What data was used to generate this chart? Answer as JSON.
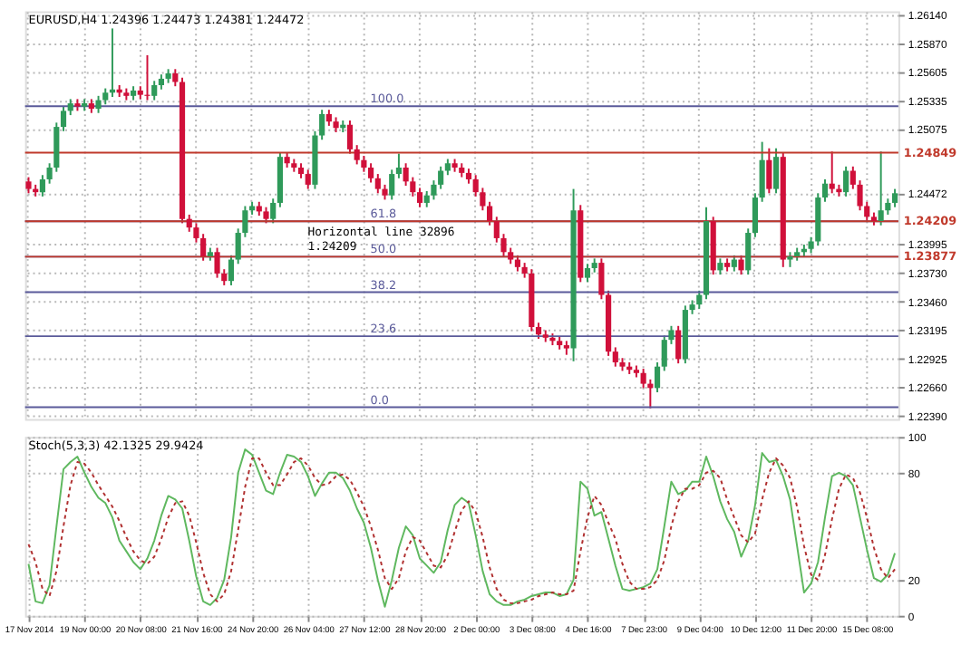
{
  "chart_data": [
    {
      "type": "candlestick",
      "title": "EURUSD,H4  1.24396 1.24473 1.24381 1.24472",
      "categories": [
        null,
        null,
        null,
        null,
        null,
        null,
        null,
        null,
        null,
        null,
        null,
        null,
        null,
        null,
        null,
        null,
        null,
        null,
        null,
        null,
        null,
        null,
        null,
        null,
        null,
        null,
        null,
        null,
        null,
        null,
        null,
        null,
        null,
        null,
        null,
        null,
        null,
        null,
        null,
        null,
        null,
        null,
        null,
        null,
        null,
        null,
        null,
        null,
        null,
        null,
        null,
        null,
        null,
        null,
        null,
        null,
        null,
        null,
        null,
        null,
        null,
        null,
        null,
        null,
        null,
        null,
        null,
        null,
        null,
        null,
        null,
        null,
        null,
        null,
        null,
        null,
        null,
        null,
        null,
        null,
        null,
        null,
        null,
        null,
        null,
        null,
        null,
        null,
        null,
        null,
        null,
        null,
        null,
        null,
        null,
        null,
        null,
        null,
        null,
        null,
        null,
        null,
        null,
        null,
        null,
        null,
        null,
        null,
        null,
        null,
        null,
        null,
        null,
        null,
        null,
        null,
        null,
        null,
        null,
        null,
        null,
        null,
        null,
        null,
        null
      ],
      "ohlc": [
        [
          1.2458,
          1.2462,
          1.2447,
          1.2451
        ],
        [
          1.2451,
          1.2455,
          1.2444,
          1.2448
        ],
        [
          1.2448,
          1.2464,
          1.2444,
          1.246
        ],
        [
          1.246,
          1.2475,
          1.2456,
          1.2471
        ],
        [
          1.2471,
          1.2513,
          1.2467,
          1.2509
        ],
        [
          1.2509,
          1.2528,
          1.2505,
          1.2524
        ],
        [
          1.2524,
          1.2535,
          1.252,
          1.2531
        ],
        [
          1.2531,
          1.2535,
          1.2524,
          1.2528
        ],
        [
          1.2528,
          1.2535,
          1.2524,
          1.2531
        ],
        [
          1.2531,
          1.2535,
          1.2522,
          1.2526
        ],
        [
          1.2526,
          1.2538,
          1.2522,
          1.2534
        ],
        [
          1.2534,
          1.2545,
          1.253,
          1.2541
        ],
        [
          1.2541,
          1.2601,
          1.2537,
          1.2544
        ],
        [
          1.2544,
          1.2548,
          1.2537,
          1.2541
        ],
        [
          1.2541,
          1.2545,
          1.2534,
          1.2538
        ],
        [
          1.2538,
          1.2547,
          1.2534,
          1.2543
        ],
        [
          1.2543,
          1.2547,
          1.2535,
          1.2539
        ],
        [
          1.2539,
          1.2576,
          1.2534,
          1.2538
        ],
        [
          1.2538,
          1.2552,
          1.2534,
          1.2548
        ],
        [
          1.2548,
          1.2558,
          1.2544,
          1.2554
        ],
        [
          1.2554,
          1.2563,
          1.255,
          1.2559
        ],
        [
          1.2559,
          1.2563,
          1.2547,
          1.2551
        ],
        [
          1.2551,
          1.2555,
          1.2419,
          1.2423
        ],
        [
          1.2423,
          1.2427,
          1.2411,
          1.2415
        ],
        [
          1.2415,
          1.2419,
          1.2401,
          1.2405
        ],
        [
          1.2405,
          1.2409,
          1.2384,
          1.2388
        ],
        [
          1.2388,
          1.2396,
          1.2384,
          1.2392
        ],
        [
          1.2392,
          1.2396,
          1.2368,
          1.2372
        ],
        [
          1.2372,
          1.2376,
          1.2361,
          1.2365
        ],
        [
          1.2365,
          1.2389,
          1.2361,
          1.2385
        ],
        [
          1.2385,
          1.2414,
          1.2381,
          1.241
        ],
        [
          1.241,
          1.2435,
          1.2406,
          1.2431
        ],
        [
          1.2431,
          1.2439,
          1.2427,
          1.2435
        ],
        [
          1.2435,
          1.2439,
          1.2426,
          1.243
        ],
        [
          1.243,
          1.2434,
          1.2419,
          1.2423
        ],
        [
          1.2423,
          1.2442,
          1.2419,
          1.2438
        ],
        [
          1.2438,
          1.2485,
          1.2434,
          1.2481
        ],
        [
          1.2481,
          1.2485,
          1.2471,
          1.2475
        ],
        [
          1.2475,
          1.2479,
          1.2467,
          1.2471
        ],
        [
          1.2471,
          1.2475,
          1.2461,
          1.2465
        ],
        [
          1.2465,
          1.2469,
          1.2451,
          1.2455
        ],
        [
          1.2455,
          1.2505,
          1.2451,
          1.2501
        ],
        [
          1.2501,
          1.2525,
          1.2497,
          1.2521
        ],
        [
          1.2521,
          1.2525,
          1.251,
          1.2514
        ],
        [
          1.2514,
          1.2518,
          1.2504,
          1.2508
        ],
        [
          1.2508,
          1.2515,
          1.2504,
          1.2511
        ],
        [
          1.2511,
          1.2515,
          1.2484,
          1.2488
        ],
        [
          1.2488,
          1.2492,
          1.2474,
          1.2478
        ],
        [
          1.2478,
          1.2482,
          1.2467,
          1.2471
        ],
        [
          1.2471,
          1.2475,
          1.2457,
          1.2461
        ],
        [
          1.2461,
          1.2465,
          1.2447,
          1.2451
        ],
        [
          1.2451,
          1.2455,
          1.2441,
          1.2445
        ],
        [
          1.2445,
          1.2469,
          1.2441,
          1.2465
        ],
        [
          1.2465,
          1.2484,
          1.2461,
          1.2471
        ],
        [
          1.2471,
          1.2475,
          1.2454,
          1.2458
        ],
        [
          1.2458,
          1.2462,
          1.2444,
          1.2448
        ],
        [
          1.2448,
          1.2452,
          1.2434,
          1.2438
        ],
        [
          1.2438,
          1.2449,
          1.2434,
          1.2445
        ],
        [
          1.2445,
          1.2459,
          1.2441,
          1.2455
        ],
        [
          1.2455,
          1.2472,
          1.2451,
          1.2468
        ],
        [
          1.2468,
          1.2479,
          1.2464,
          1.2475
        ],
        [
          1.2475,
          1.2479,
          1.2467,
          1.2471
        ],
        [
          1.2471,
          1.2475,
          1.2462,
          1.2466
        ],
        [
          1.2466,
          1.247,
          1.2456,
          1.246
        ],
        [
          1.246,
          1.2464,
          1.2444,
          1.2448
        ],
        [
          1.2448,
          1.2452,
          1.2431,
          1.2435
        ],
        [
          1.2435,
          1.2439,
          1.2417,
          1.2421
        ],
        [
          1.2421,
          1.2425,
          1.2401,
          1.2405
        ],
        [
          1.2405,
          1.2409,
          1.2388,
          1.2392
        ],
        [
          1.2392,
          1.2396,
          1.2381,
          1.2385
        ],
        [
          1.2385,
          1.2389,
          1.2374,
          1.2378
        ],
        [
          1.2378,
          1.2382,
          1.2368,
          1.2372
        ],
        [
          1.2372,
          1.2376,
          1.2318,
          1.2322
        ],
        [
          1.2322,
          1.2326,
          1.2311,
          1.2315
        ],
        [
          1.2315,
          1.2319,
          1.2308,
          1.2312
        ],
        [
          1.2312,
          1.2316,
          1.2305,
          1.2309
        ],
        [
          1.2309,
          1.2313,
          1.2301,
          1.2305
        ],
        [
          1.2305,
          1.2309,
          1.2296,
          1.2302
        ],
        [
          1.2302,
          1.2451,
          1.229,
          1.2431
        ],
        [
          1.2431,
          1.2436,
          1.2364,
          1.2368
        ],
        [
          1.2368,
          1.2381,
          1.2364,
          1.2377
        ],
        [
          1.2377,
          1.2386,
          1.2373,
          1.2382
        ],
        [
          1.2382,
          1.2386,
          1.2348,
          1.2352
        ],
        [
          1.2352,
          1.2356,
          1.2295,
          1.2299
        ],
        [
          1.2299,
          1.2303,
          1.2285,
          1.2289
        ],
        [
          1.2289,
          1.2293,
          1.2281,
          1.2285
        ],
        [
          1.2285,
          1.2289,
          1.2278,
          1.2282
        ],
        [
          1.2282,
          1.2286,
          1.2275,
          1.2279
        ],
        [
          1.2279,
          1.2283,
          1.2265,
          1.2269
        ],
        [
          1.2269,
          1.2273,
          1.2246,
          1.2265
        ],
        [
          1.2265,
          1.2289,
          1.2261,
          1.2285
        ],
        [
          1.2285,
          1.2314,
          1.2281,
          1.231
        ],
        [
          1.231,
          1.2323,
          1.2306,
          1.2319
        ],
        [
          1.2319,
          1.2323,
          1.2288,
          1.2292
        ],
        [
          1.2292,
          1.2342,
          1.2288,
          1.2338
        ],
        [
          1.2338,
          1.2347,
          1.2334,
          1.2343
        ],
        [
          1.2343,
          1.2356,
          1.2339,
          1.2352
        ],
        [
          1.2352,
          1.2434,
          1.2348,
          1.2421
        ],
        [
          1.2421,
          1.2425,
          1.2371,
          1.2375
        ],
        [
          1.2375,
          1.2386,
          1.2371,
          1.2382
        ],
        [
          1.2382,
          1.2386,
          1.2374,
          1.2378
        ],
        [
          1.2378,
          1.2389,
          1.2374,
          1.2385
        ],
        [
          1.2385,
          1.2389,
          1.2371,
          1.2375
        ],
        [
          1.2375,
          1.2414,
          1.2371,
          1.241
        ],
        [
          1.241,
          1.2447,
          1.2406,
          1.2443
        ],
        [
          1.2443,
          1.2495,
          1.2439,
          1.2478
        ],
        [
          1.2478,
          1.2489,
          1.2447,
          1.2451
        ],
        [
          1.2451,
          1.2489,
          1.2447,
          1.2481
        ],
        [
          1.2481,
          1.2485,
          1.2378,
          1.2385
        ],
        [
          1.2385,
          1.2392,
          1.2378,
          1.2388
        ],
        [
          1.2388,
          1.2396,
          1.2384,
          1.2392
        ],
        [
          1.2392,
          1.2399,
          1.2388,
          1.2395
        ],
        [
          1.2395,
          1.2406,
          1.2391,
          1.2402
        ],
        [
          1.2402,
          1.2447,
          1.2398,
          1.2443
        ],
        [
          1.2443,
          1.246,
          1.2439,
          1.2456
        ],
        [
          1.2456,
          1.2486,
          1.2447,
          1.2451
        ],
        [
          1.2451,
          1.2455,
          1.2444,
          1.2448
        ],
        [
          1.2448,
          1.2472,
          1.2444,
          1.2468
        ],
        [
          1.2468,
          1.2472,
          1.2451,
          1.2455
        ],
        [
          1.2455,
          1.2459,
          1.2431,
          1.2435
        ],
        [
          1.2435,
          1.2439,
          1.2421,
          1.2425
        ],
        [
          1.2425,
          1.2429,
          1.2417,
          1.2421
        ],
        [
          1.2421,
          1.2486,
          1.2417,
          1.2431
        ],
        [
          1.2431,
          1.2442,
          1.2427,
          1.2438
        ],
        [
          1.2438,
          1.2451,
          1.2434,
          1.2447
        ]
      ],
      "colors": [
        "#d0103a",
        "#d0103a",
        "#2f9a5a",
        "#2f9a5a",
        "#2f9a5a",
        "#2f9a5a",
        "#2f9a5a",
        "#d0103a",
        "#2f9a5a",
        "#d0103a",
        "#2f9a5a",
        "#2f9a5a",
        "#2f9a5a",
        "#d0103a",
        "#d0103a",
        "#2f9a5a",
        "#d0103a",
        "#d0103a",
        "#2f9a5a",
        "#2f9a5a",
        "#2f9a5a",
        "#d0103a",
        "#d0103a",
        "#d0103a",
        "#d0103a",
        "#d0103a",
        "#2f9a5a",
        "#d0103a",
        "#d0103a",
        "#2f9a5a",
        "#2f9a5a",
        "#2f9a5a",
        "#2f9a5a",
        "#d0103a",
        "#d0103a",
        "#2f9a5a",
        "#2f9a5a",
        "#d0103a",
        "#d0103a",
        "#d0103a",
        "#d0103a",
        "#2f9a5a",
        "#2f9a5a",
        "#d0103a",
        "#d0103a",
        "#2f9a5a",
        "#d0103a",
        "#d0103a",
        "#d0103a",
        "#d0103a",
        "#d0103a",
        "#d0103a",
        "#2f9a5a",
        "#2f9a5a",
        "#d0103a",
        "#d0103a",
        "#d0103a",
        "#2f9a5a",
        "#2f9a5a",
        "#2f9a5a",
        "#2f9a5a",
        "#d0103a",
        "#d0103a",
        "#d0103a",
        "#d0103a",
        "#d0103a",
        "#d0103a",
        "#d0103a",
        "#d0103a",
        "#d0103a",
        "#d0103a",
        "#d0103a",
        "#d0103a",
        "#d0103a",
        "#d0103a",
        "#d0103a",
        "#d0103a",
        "#d0103a",
        "#2f9a5a",
        "#d0103a",
        "#2f9a5a",
        "#2f9a5a",
        "#d0103a",
        "#d0103a",
        "#d0103a",
        "#d0103a",
        "#d0103a",
        "#d0103a",
        "#d0103a",
        "#d0103a",
        "#2f9a5a",
        "#2f9a5a",
        "#2f9a5a",
        "#d0103a",
        "#2f9a5a",
        "#2f9a5a",
        "#2f9a5a",
        "#2f9a5a",
        "#d0103a",
        "#2f9a5a",
        "#d0103a",
        "#2f9a5a",
        "#d0103a",
        "#2f9a5a",
        "#2f9a5a",
        "#2f9a5a",
        "#d0103a",
        "#2f9a5a",
        "#d0103a",
        "#2f9a5a",
        "#2f9a5a",
        "#2f9a5a",
        "#2f9a5a",
        "#2f9a5a",
        "#2f9a5a",
        "#d0103a",
        "#d0103a",
        "#2f9a5a",
        "#d0103a",
        "#d0103a",
        "#d0103a",
        "#d0103a",
        "#2f9a5a",
        "#2f9a5a",
        "#2f9a5a"
      ],
      "ylim": [
        1.2236,
        1.2617
      ],
      "yticks": [
        {
          "value": 1.2614,
          "label": "1.26140"
        },
        {
          "value": 1.2587,
          "label": "1.25870"
        },
        1.25605,
        1.25335,
        1.25075,
        1.24472,
        1.23995,
        {
          "value": 1.2373,
          "label": "1.23730"
        },
        {
          "value": 1.2346,
          "label": "1.23460"
        },
        1.23195,
        1.22925,
        {
          "value": 1.2266,
          "label": "1.22660"
        },
        {
          "value": 1.2239,
          "label": "1.22390"
        }
      ],
      "grid": true,
      "tick_labels": "y",
      "ref_lines": [
        {
          "axis": "y",
          "value": 1.25284,
          "color": "#5a5a9a"
        },
        {
          "axis": "y",
          "value": 1.24209,
          "color": "#5a5a9a"
        },
        {
          "axis": "y",
          "value": 1.23877,
          "color": "#5a5a9a"
        },
        {
          "axis": "y",
          "value": 1.23545,
          "color": "#5a5a9a"
        },
        {
          "axis": "y",
          "value": 1.23134,
          "color": "#5a5a9a"
        },
        {
          "axis": "y",
          "value": 1.2247,
          "color": "#5a5a9a"
        },
        {
          "axis": "y",
          "value": 1.24849,
          "label": "1.24849",
          "color": "#c0392b"
        },
        {
          "axis": "y",
          "value": 1.24209,
          "label": "1.24209",
          "color": "#c0392b"
        },
        {
          "axis": "y",
          "value": 1.23877,
          "label": "1.23877",
          "color": "#c0392b"
        }
      ],
      "annotations": [
        {
          "text": "Horizontal line 32896\n1.24209",
          "y": 1.24209
        },
        {
          "text": "100.0",
          "y": 1.25284
        },
        {
          "text": "61.8",
          "y": 1.24209
        },
        {
          "text": "50.0",
          "y": 1.23877
        },
        {
          "text": "38.2",
          "y": 1.23545
        },
        {
          "text": "23.6",
          "y": 1.23134
        },
        {
          "text": "0.0",
          "y": 1.2247
        }
      ]
    },
    {
      "type": "line",
      "title": "Stoch(5,3,3) 42.1325 29.9424",
      "categories": [
        "17 Nov 2014",
        null,
        null,
        null,
        null,
        null,
        null,
        null,
        "19 Nov 00:00",
        null,
        null,
        null,
        null,
        null,
        null,
        null,
        "20 Nov 08:00",
        null,
        null,
        null,
        null,
        null,
        null,
        null,
        "21 Nov 16:00",
        null,
        null,
        null,
        null,
        null,
        null,
        null,
        "24 Nov 20:00",
        null,
        null,
        null,
        null,
        null,
        null,
        null,
        "26 Nov 04:00",
        null,
        null,
        null,
        null,
        null,
        null,
        null,
        "27 Nov 12:00",
        null,
        null,
        null,
        null,
        null,
        null,
        null,
        "28 Nov 20:00",
        null,
        null,
        null,
        null,
        null,
        null,
        null,
        "2 Dec 00:00",
        null,
        null,
        null,
        null,
        null,
        null,
        null,
        "3 Dec 08:00",
        null,
        null,
        null,
        null,
        null,
        null,
        null,
        "4 Dec 16:00",
        null,
        null,
        null,
        null,
        null,
        null,
        null,
        "7 Dec 23:00",
        null,
        null,
        null,
        null,
        null,
        null,
        null,
        "9 Dec 04:00",
        null,
        null,
        null,
        null,
        null,
        null,
        null,
        "10 Dec 12:00",
        null,
        null,
        null,
        null,
        null,
        null,
        null,
        "11 Dec 20:00",
        null,
        null,
        null,
        null,
        null,
        null,
        null,
        "15 Dec 08:00",
        null,
        null,
        null,
        null
      ],
      "series": [
        {
          "color": "#5fb85f",
          "line_style": "solid",
          "values": [
            29,
            8,
            7,
            17,
            50,
            82,
            86,
            89,
            80,
            72,
            66,
            63,
            55,
            42,
            36,
            30,
            26,
            32,
            42,
            56,
            67,
            65,
            60,
            42,
            22,
            8,
            6,
            10,
            20,
            44,
            80,
            93,
            90,
            80,
            70,
            68,
            80,
            90,
            89,
            86,
            78,
            67,
            74,
            80,
            80,
            77,
            70,
            60,
            52,
            38,
            20,
            5,
            20,
            38,
            50,
            45,
            32,
            28,
            24,
            30,
            48,
            62,
            66,
            63,
            45,
            25,
            12,
            8,
            6,
            6,
            8,
            9,
            11,
            12,
            13,
            13,
            11,
            12,
            20,
            75,
            71,
            56,
            58,
            43,
            28,
            15,
            14,
            15,
            16,
            18,
            26,
            50,
            75,
            68,
            70,
            75,
            75,
            89,
            78,
            64,
            54,
            47,
            33,
            42,
            62,
            91,
            86,
            87,
            78,
            65,
            39,
            13,
            18,
            30,
            55,
            78,
            80,
            78,
            73,
            55,
            37,
            21,
            19,
            23,
            35
          ]
        },
        {
          "color": "#b03030",
          "line_style": "dotted",
          "values": [
            40,
            30,
            15,
            11,
            25,
            50,
            73,
            86,
            85,
            80,
            73,
            67,
            61,
            53,
            44,
            36,
            31,
            29,
            33,
            43,
            55,
            63,
            64,
            56,
            41,
            24,
            12,
            8,
            12,
            25,
            48,
            72,
            88,
            88,
            80,
            73,
            73,
            79,
            86,
            88,
            84,
            77,
            73,
            74,
            78,
            79,
            76,
            69,
            61,
            50,
            37,
            21,
            15,
            21,
            36,
            44,
            42,
            35,
            28,
            27,
            34,
            47,
            59,
            64,
            58,
            44,
            27,
            15,
            9,
            7,
            7,
            8,
            9,
            11,
            12,
            13,
            12,
            12,
            14,
            36,
            55,
            67,
            62,
            52,
            43,
            29,
            19,
            15,
            15,
            16,
            20,
            31,
            50,
            64,
            71,
            71,
            73,
            80,
            81,
            77,
            65,
            55,
            45,
            41,
            46,
            65,
            80,
            88,
            84,
            77,
            61,
            39,
            23,
            20,
            34,
            54,
            71,
            79,
            77,
            69,
            55,
            38,
            26,
            21,
            26
          ]
        }
      ],
      "ylim": [
        0,
        100
      ],
      "yticks": [
        0,
        20,
        80,
        100
      ],
      "grid": true
    }
  ]
}
